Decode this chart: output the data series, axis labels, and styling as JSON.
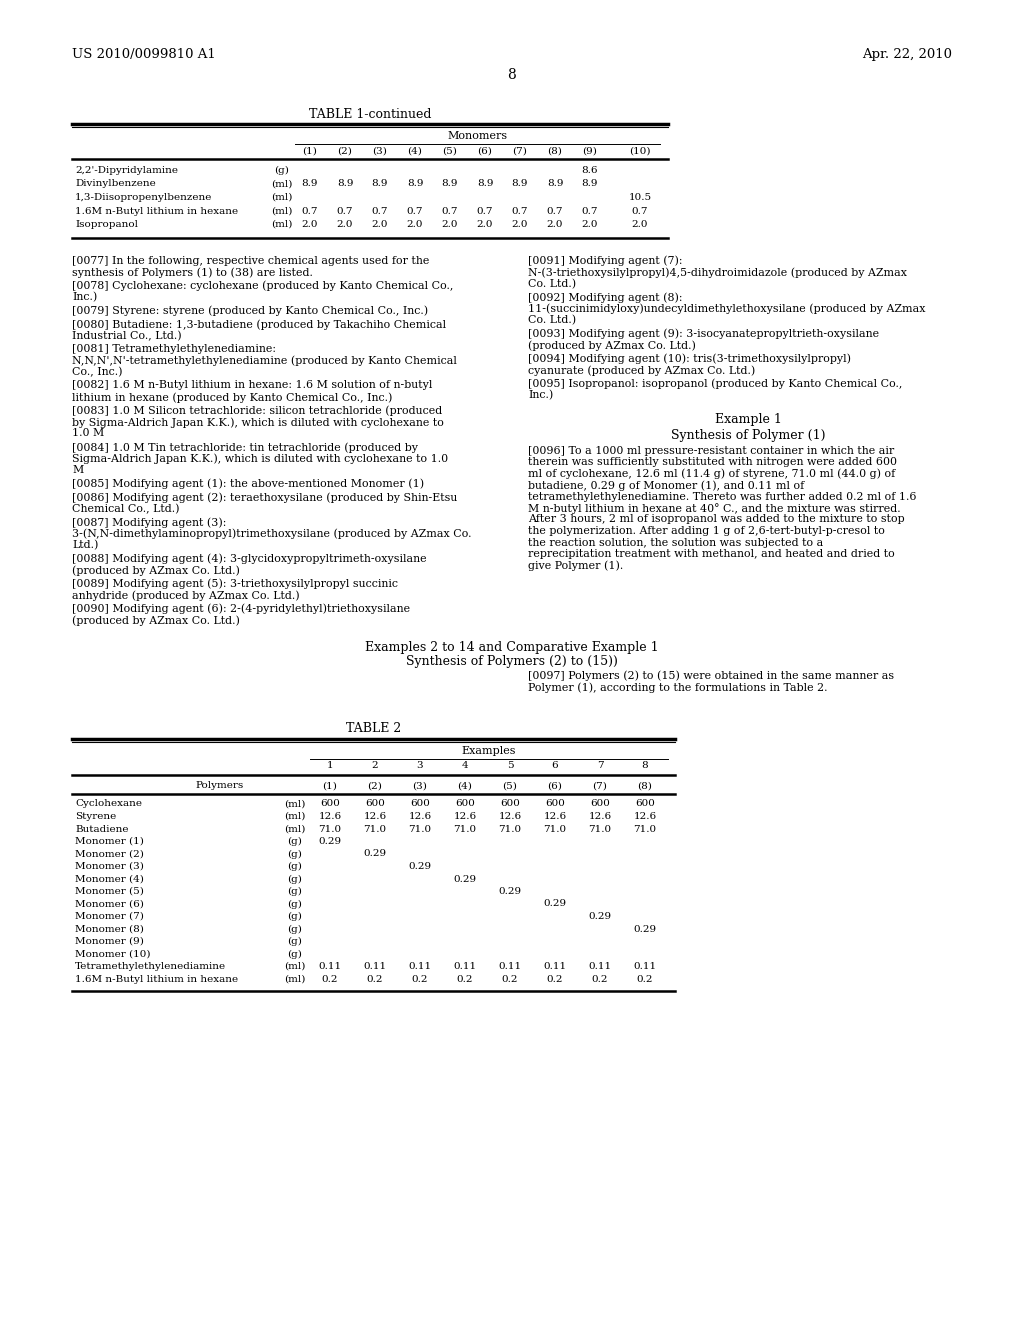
{
  "header_left": "US 2010/0099810 A1",
  "header_right": "Apr. 22, 2010",
  "page_number": "8",
  "bg_color": "#ffffff",
  "text_color": "#000000",
  "t1_col_positions": [
    310,
    345,
    380,
    415,
    450,
    485,
    520,
    555,
    590,
    640
  ],
  "t1_col_labels": [
    "(1)",
    "(2)",
    "(3)",
    "(4)",
    "(5)",
    "(6)",
    "(7)",
    "(8)",
    "(9)",
    "(10)"
  ],
  "t1_rows": [
    [
      "2,2'-Dipyridylamine",
      "(g)",
      [
        "",
        "",
        "",
        "",
        "",
        "",
        "",
        "",
        "8.6",
        ""
      ]
    ],
    [
      "Divinylbenzene",
      "(ml)",
      [
        "8.9",
        "8.9",
        "8.9",
        "8.9",
        "8.9",
        "8.9",
        "8.9",
        "8.9",
        "8.9",
        ""
      ]
    ],
    [
      "1,3-Diisopropenylbenzene",
      "(ml)",
      [
        "",
        "",
        "",
        "",
        "",
        "",
        "",
        "",
        "",
        "10.5"
      ]
    ],
    [
      "1.6M n-Butyl lithium in hexane",
      "(ml)",
      [
        "0.7",
        "0.7",
        "0.7",
        "0.7",
        "0.7",
        "0.7",
        "0.7",
        "0.7",
        "0.7",
        "0.7"
      ]
    ],
    [
      "Isopropanol",
      "(ml)",
      [
        "2.0",
        "2.0",
        "2.0",
        "2.0",
        "2.0",
        "2.0",
        "2.0",
        "2.0",
        "2.0",
        "2.0"
      ]
    ]
  ],
  "left_paras": [
    [
      "[0077]",
      "In the following, respective chemical agents used for the synthesis of Polymers (1) to (38) are listed."
    ],
    [
      "[0078]",
      "Cyclohexane: cyclohexane (produced by Kanto Chemical Co., Inc.)"
    ],
    [
      "[0079]",
      "Styrene: styrene (produced by Kanto Chemical Co., Inc.)"
    ],
    [
      "[0080]",
      "Butadiene: 1,3-butadiene (produced by Takachiho Chemical Industrial Co., Ltd.)"
    ],
    [
      "[0081]",
      "Tetramethylethylenediamine: N,N,N',N'-tetramethylethylenediamine (produced by Kanto Chemical Co., Inc.)"
    ],
    [
      "[0082]",
      "1.6 M n-Butyl lithium in hexane: 1.6 M solution of n-butyl lithium in hexane (produced by Kanto Chemical Co., Inc.)"
    ],
    [
      "[0083]",
      "1.0 M Silicon tetrachloride: silicon tetrachloride (produced by Sigma-Aldrich Japan K.K.), which is diluted with cyclohexane to 1.0 M"
    ],
    [
      "[0084]",
      "1.0 M Tin tetrachloride: tin tetrachloride (produced by Sigma-Aldrich Japan K.K.), which is diluted with cyclohexane to 1.0 M"
    ],
    [
      "[0085]",
      "Modifying agent (1): the above-mentioned Monomer (1)"
    ],
    [
      "[0086]",
      "Modifying agent (2): teraethoxysilane (produced by Shin-Etsu Chemical Co., Ltd.)"
    ],
    [
      "[0087]",
      "Modifying agent (3): 3-(N,N-dimethylaminopropyl)trimethoxysilane (produced by AZmax Co. Ltd.)"
    ],
    [
      "[0088]",
      "Modifying agent (4): 3-glycidoxypropyltrimeth-oxysilane (produced by AZmax Co. Ltd.)"
    ],
    [
      "[0089]",
      "Modifying agent (5): 3-triethoxysilylpropyl succinic anhydride (produced by AZmax Co. Ltd.)"
    ],
    [
      "[0090]",
      "Modifying agent (6): 2-(4-pyridylethyl)triethoxysilane (produced by AZmax Co. Ltd.)"
    ]
  ],
  "right_paras": [
    [
      "[0091]",
      "Modifying agent (7): N-(3-triethoxysilylpropyl)4,5-dihydroimidazole (produced by AZmax Co. Ltd.)"
    ],
    [
      "[0092]",
      "Modifying agent (8): 11-(succinimidyloxy)undecyldimethylethoxysilane (produced by AZmax Co. Ltd.)"
    ],
    [
      "[0093]",
      "Modifying agent (9): 3-isocyanatepropyltrieth-oxysilane (produced by AZmax Co. Ltd.)"
    ],
    [
      "[0094]",
      "Modifying agent (10): tris(3-trimethoxysilylpropyl) cyanurate (produced by AZmax Co. Ltd.)"
    ],
    [
      "[0095]",
      "Isopropanol: isopropanol (produced by Kanto Chemical Co., Inc.)"
    ]
  ],
  "p0096": "To a 1000 ml pressure-resistant container in which the air therein was sufficiently substituted with nitrogen were added 600 ml of cyclohexane, 12.6 ml (11.4 g) of styrene, 71.0 ml (44.0 g) of butadiene, 0.29 g of Monomer (1), and 0.11 ml of tetramethylethylenediamine. Thereto was further added 0.2 ml of 1.6 M n-butyl lithium in hexane at 40° C., and the mixture was stirred. After 3 hours, 2 ml of isopropanol was added to the mixture to stop the polymerization. After adding 1 g of 2,6-tert-butyl-p-cresol to the reaction solution, the solution was subjected to a reprecipitation treatment with methanol, and heated and dried to give Polymer (1).",
  "p0097": "Polymers (2) to (15) were obtained in the same manner as Polymer (1), according to the formulations in Table 2.",
  "t2_col_positions": [
    330,
    375,
    420,
    465,
    510,
    555,
    600,
    645
  ],
  "t2_col_nums": [
    "1",
    "2",
    "3",
    "4",
    "5",
    "6",
    "7",
    "8"
  ],
  "t2_col_subs": [
    "(1)",
    "(2)",
    "(3)",
    "(4)",
    "(5)",
    "(6)",
    "(7)",
    "(8)"
  ],
  "t2_rows": [
    [
      "Cyclohexane",
      "(ml)",
      [
        "600",
        "600",
        "600",
        "600",
        "600",
        "600",
        "600",
        "600"
      ]
    ],
    [
      "Styrene",
      "(ml)",
      [
        "12.6",
        "12.6",
        "12.6",
        "12.6",
        "12.6",
        "12.6",
        "12.6",
        "12.6"
      ]
    ],
    [
      "Butadiene",
      "(ml)",
      [
        "71.0",
        "71.0",
        "71.0",
        "71.0",
        "71.0",
        "71.0",
        "71.0",
        "71.0"
      ]
    ],
    [
      "Monomer (1)",
      "(g)",
      [
        "0.29",
        "",
        "",
        "",
        "",
        "",
        "",
        ""
      ]
    ],
    [
      "Monomer (2)",
      "(g)",
      [
        "",
        "0.29",
        "",
        "",
        "",
        "",
        "",
        ""
      ]
    ],
    [
      "Monomer (3)",
      "(g)",
      [
        "",
        "",
        "0.29",
        "",
        "",
        "",
        "",
        ""
      ]
    ],
    [
      "Monomer (4)",
      "(g)",
      [
        "",
        "",
        "",
        "0.29",
        "",
        "",
        "",
        ""
      ]
    ],
    [
      "Monomer (5)",
      "(g)",
      [
        "",
        "",
        "",
        "",
        "0.29",
        "",
        "",
        ""
      ]
    ],
    [
      "Monomer (6)",
      "(g)",
      [
        "",
        "",
        "",
        "",
        "",
        "0.29",
        "",
        ""
      ]
    ],
    [
      "Monomer (7)",
      "(g)",
      [
        "",
        "",
        "",
        "",
        "",
        "",
        "0.29",
        ""
      ]
    ],
    [
      "Monomer (8)",
      "(g)",
      [
        "",
        "",
        "",
        "",
        "",
        "",
        "",
        "0.29"
      ]
    ],
    [
      "Monomer (9)",
      "(g)",
      [
        "",
        "",
        "",
        "",
        "",
        "",
        "",
        ""
      ]
    ],
    [
      "Monomer (10)",
      "(g)",
      [
        "",
        "",
        "",
        "",
        "",
        "",
        "",
        ""
      ]
    ],
    [
      "Tetramethylethylenediamine",
      "(ml)",
      [
        "0.11",
        "0.11",
        "0.11",
        "0.11",
        "0.11",
        "0.11",
        "0.11",
        "0.11"
      ]
    ],
    [
      "1.6M n-Butyl lithium in hexane",
      "(ml)",
      [
        "0.2",
        "0.2",
        "0.2",
        "0.2",
        "0.2",
        "0.2",
        "0.2",
        "0.2"
      ]
    ]
  ]
}
